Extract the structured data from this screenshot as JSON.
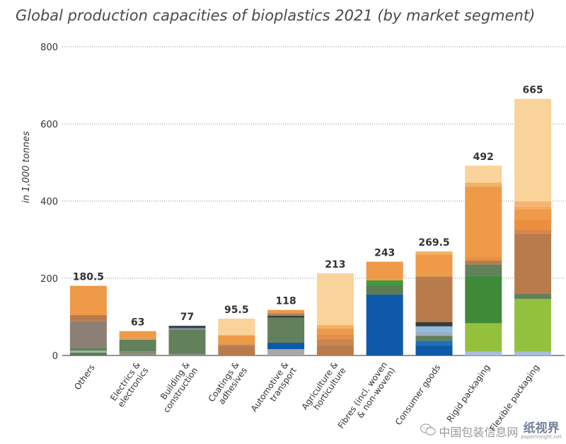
{
  "chart_data": {
    "type": "bar",
    "title": "Global production capacities of bioplastics 2021 (by market segment)",
    "ylabel": "in 1,000 tonnes",
    "xlabel": "",
    "ylim": [
      0,
      800
    ],
    "yticks": [
      0,
      200,
      400,
      600,
      800
    ],
    "grid": true,
    "categories": [
      "Others",
      "Electrics & electronics",
      "Building & construction",
      "Coatings & adhesives",
      "Automotive & transport",
      "Agriculture & horticulture",
      "Fibres (incl. woven & non-woven)",
      "Consumer goods",
      "Rigid packaging",
      "Flexible packaging"
    ],
    "category_lines": [
      [
        "Others"
      ],
      [
        "Electrics &",
        "electronics"
      ],
      [
        "Building &",
        "construction"
      ],
      [
        "Coatings &",
        "adhesives"
      ],
      [
        "Automotive &",
        "transport"
      ],
      [
        "Agriculture &",
        "horticulture"
      ],
      [
        "Fibres (incl. woven",
        "& non-woven)"
      ],
      [
        "Consumer goods"
      ],
      [
        "Rigid packaging"
      ],
      [
        "Flexible packaging"
      ]
    ],
    "values": [
      180.5,
      63,
      77,
      95.5,
      118,
      213,
      243,
      269.5,
      492,
      665
    ],
    "value_labels": [
      "180.5",
      "63",
      "77",
      "95.5",
      "118",
      "213",
      "243",
      "269.5",
      "492",
      "665"
    ]
  },
  "watermark": {
    "text": "中国包装信息网",
    "logo": "纸视界",
    "sub": "paperinsight.net",
    "icon": "wechat-icon"
  }
}
